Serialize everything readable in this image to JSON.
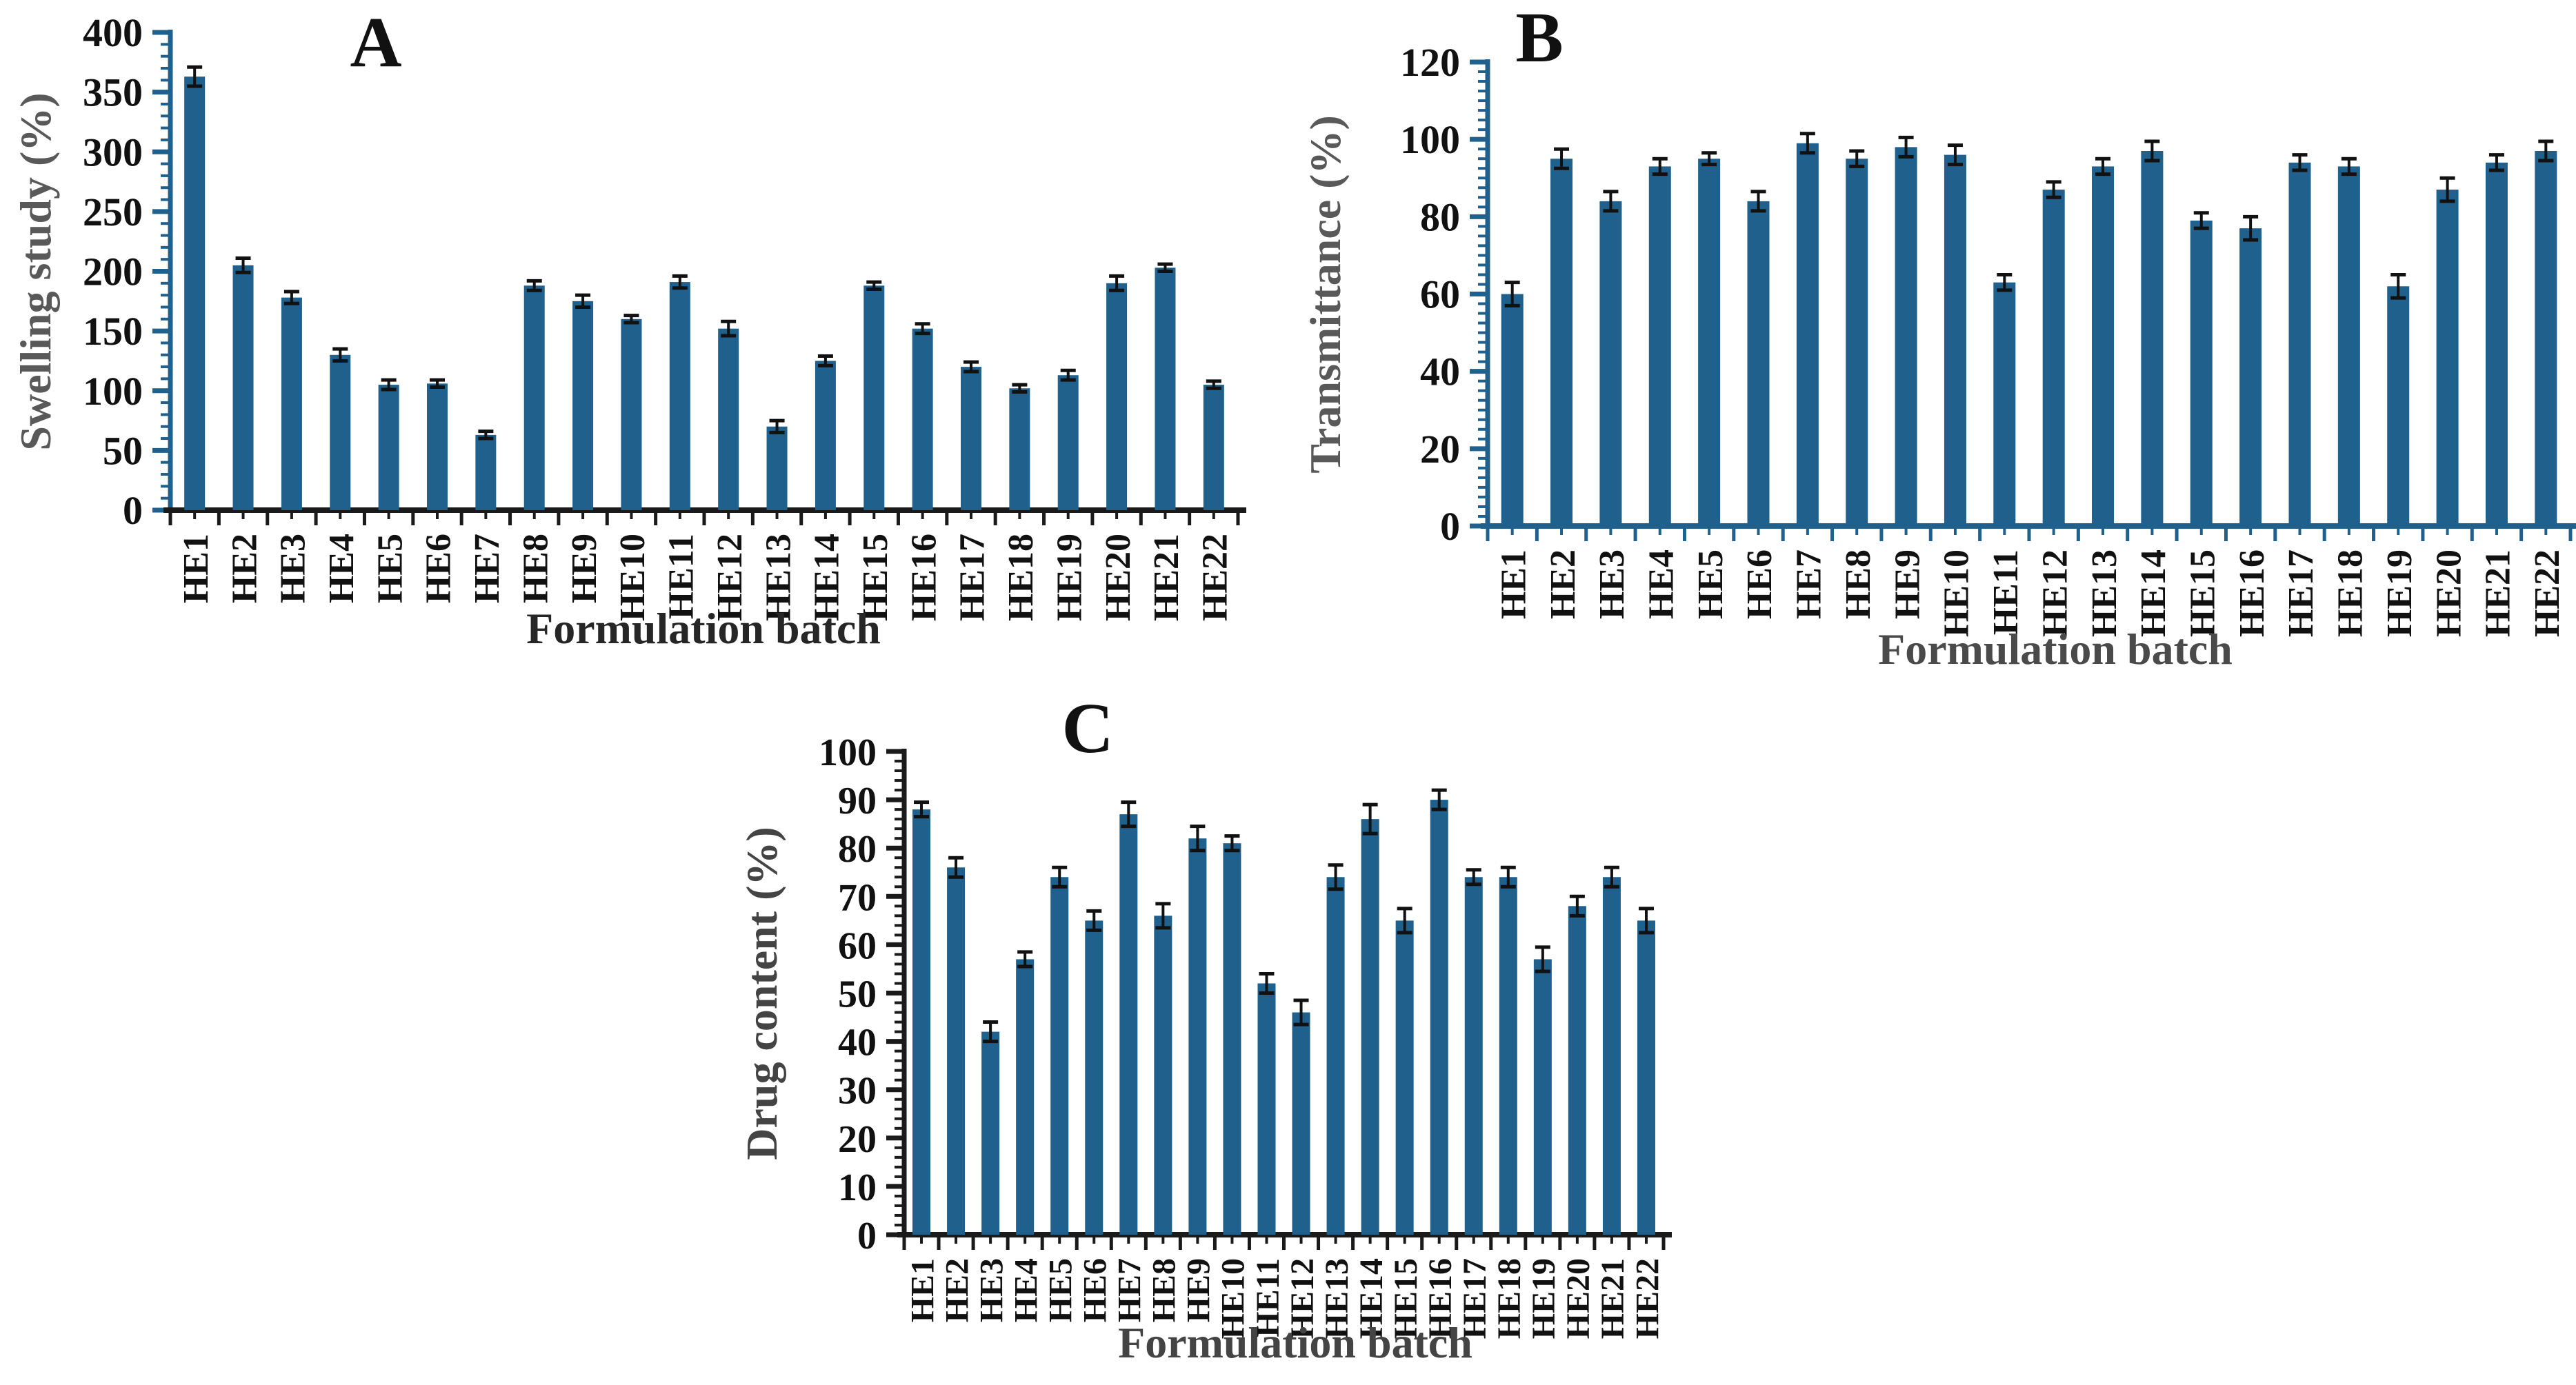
{
  "figure": {
    "background": "#ffffff",
    "bar_color": "#1f608c",
    "error_bar_color": "#111111",
    "tick_label_color": "#111111"
  },
  "chart_data": [
    {
      "type": "bar",
      "panel_label": "A",
      "ylabel": "Swelling study (%)",
      "xlabel": "Formulation batch",
      "categories": [
        "HE1",
        "HE2",
        "HE3",
        "HE4",
        "HE5",
        "HE6",
        "HE7",
        "HE8",
        "HE9",
        "HE10",
        "HE11",
        "HE12",
        "HE13",
        "HE14",
        "HE15",
        "HE16",
        "HE17",
        "HE18",
        "HE19",
        "HE20",
        "HE21",
        "HE22"
      ],
      "values": [
        363,
        205,
        178,
        130,
        105,
        106,
        63,
        188,
        175,
        160,
        191,
        152,
        70,
        125,
        188,
        152,
        120,
        102,
        113,
        190,
        203,
        105
      ],
      "errors": [
        8,
        6,
        5,
        5,
        4,
        3,
        3,
        4,
        5,
        3,
        5,
        6,
        5,
        4,
        3,
        4,
        4,
        3,
        4,
        6,
        3,
        3
      ],
      "ylim": [
        0,
        400
      ],
      "ytick_step": 50,
      "yminor_step": 10,
      "ytick_labels": [
        "0",
        "50",
        "100",
        "150",
        "200",
        "250",
        "300",
        "350",
        "400"
      ],
      "grid": false,
      "legend": null,
      "y_axis_color": "#1f608c",
      "x_axis_color": "#1a1a1a",
      "ylabel_color": "#595959",
      "xlabel_color": "#262626"
    },
    {
      "type": "bar",
      "panel_label": "B",
      "ylabel": "Transmittance (%)",
      "xlabel": "Formulation batch",
      "categories": [
        "HE1",
        "HE2",
        "HE3",
        "HE4",
        "HE5",
        "HE6",
        "HE7",
        "HE8",
        "HE9",
        "HE10",
        "HE11",
        "HE12",
        "HE13",
        "HE14",
        "HE15",
        "HE16",
        "HE17",
        "HE18",
        "HE19",
        "HE20",
        "HE21",
        "HE22"
      ],
      "values": [
        60,
        95,
        84,
        93,
        95,
        84,
        99,
        95,
        98,
        96,
        63,
        87,
        93,
        97,
        79,
        77,
        94,
        93,
        62,
        87,
        94,
        97
      ],
      "errors": [
        3,
        2.5,
        2.5,
        2,
        1.5,
        2.5,
        2.5,
        2,
        2.5,
        2.5,
        2,
        2,
        2,
        2.5,
        2,
        3,
        2,
        2,
        3,
        3,
        2,
        2.5
      ],
      "ylim": [
        0,
        120
      ],
      "ytick_step": 20,
      "yminor_step": 2.5,
      "ytick_labels": [
        "0",
        "20",
        "40",
        "60",
        "80",
        "100",
        "120"
      ],
      "grid": false,
      "legend": null,
      "y_axis_color": "#1f608c",
      "x_axis_color": "#1f608c",
      "ylabel_color": "#595959",
      "xlabel_color": "#4a4a4a"
    },
    {
      "type": "bar",
      "panel_label": "C",
      "ylabel": "Drug content (%)",
      "xlabel": "Formulation batch",
      "categories": [
        "HE1",
        "HE2",
        "HE3",
        "HE4",
        "HE5",
        "HE6",
        "HE7",
        "HE8",
        "HE9",
        "HE10",
        "HE11",
        "HE12",
        "HE13",
        "HE14",
        "HE15",
        "HE16",
        "HE17",
        "HE18",
        "HE19",
        "HE20",
        "HE21",
        "HE22"
      ],
      "values": [
        88,
        76,
        42,
        57,
        74,
        65,
        87,
        66,
        82,
        81,
        52,
        46,
        74,
        86,
        65,
        90,
        74,
        74,
        57,
        68,
        74,
        65
      ],
      "errors": [
        1.5,
        2,
        2,
        1.5,
        2,
        2,
        2.5,
        2.5,
        2.5,
        1.5,
        2,
        2.5,
        2.5,
        3,
        2.5,
        2,
        1.5,
        2,
        2.5,
        2,
        2,
        2.5
      ],
      "ylim": [
        0,
        100
      ],
      "ytick_step": 10,
      "yminor_step": 2,
      "ytick_labels": [
        "0",
        "10",
        "20",
        "30",
        "40",
        "50",
        "60",
        "70",
        "80",
        "90",
        "100"
      ],
      "grid": false,
      "legend": null,
      "y_axis_color": "#1a1a1a",
      "x_axis_color": "#1a1a1a",
      "ylabel_color": "#444444",
      "xlabel_color": "#444444"
    }
  ]
}
